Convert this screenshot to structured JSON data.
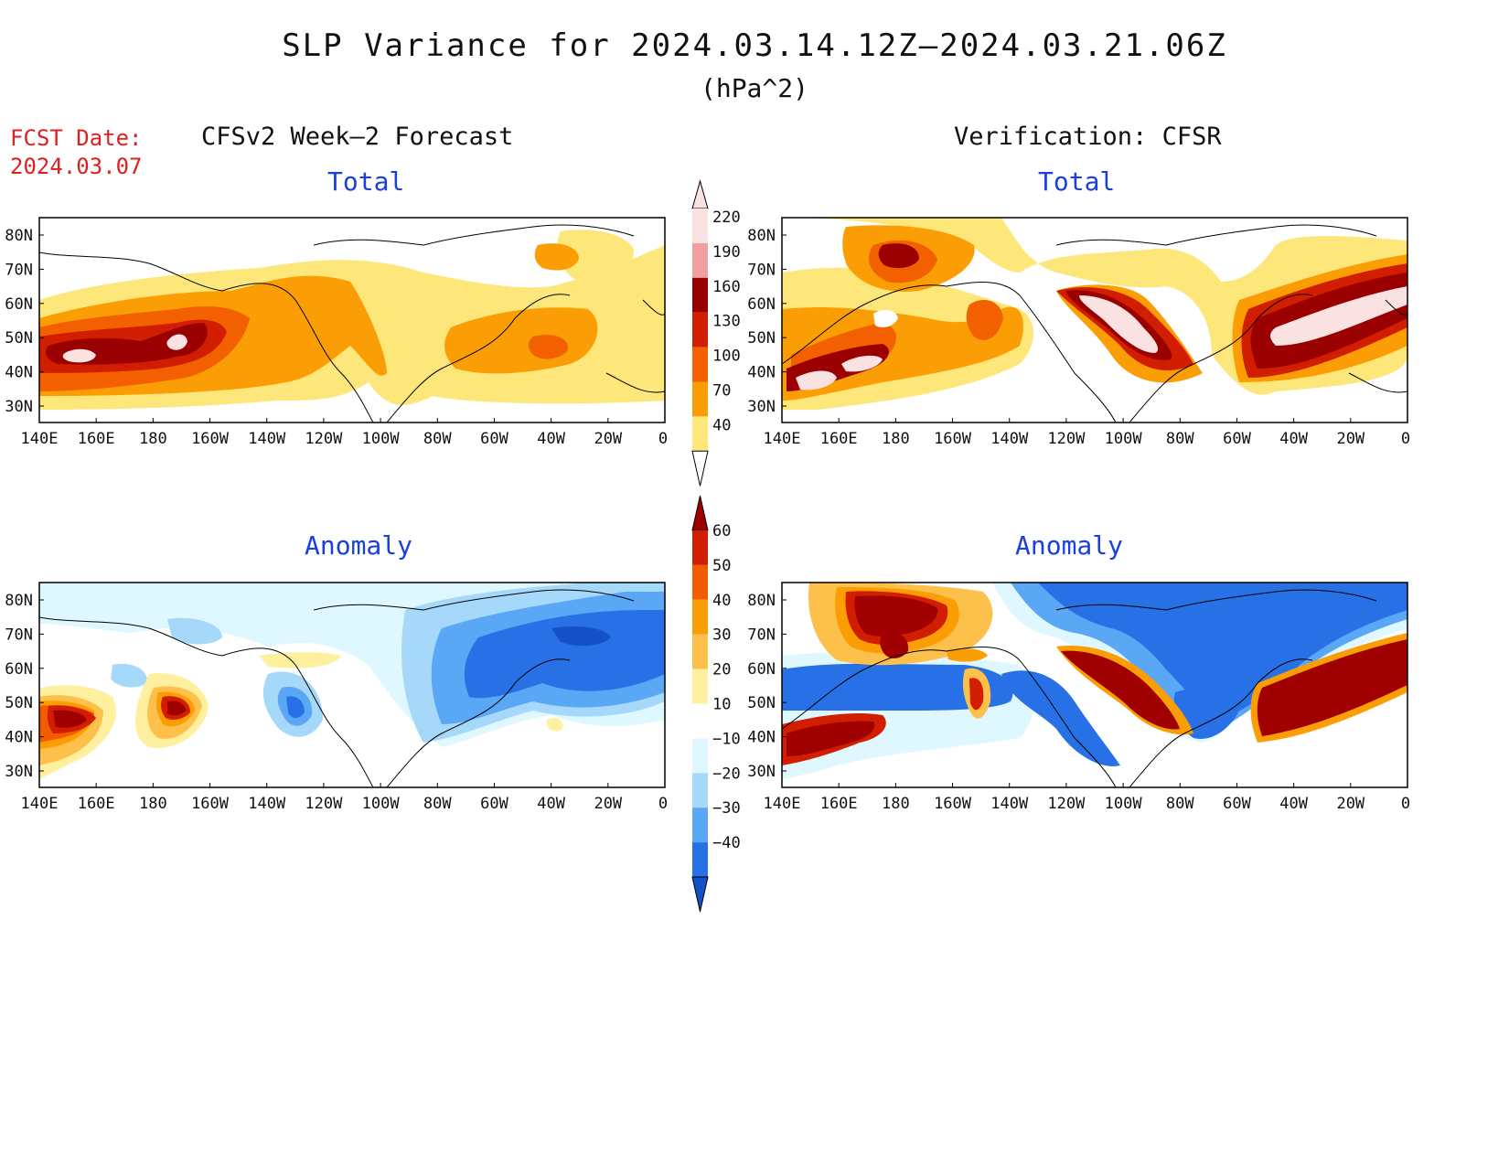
{
  "title": "SLP Variance for 2024.03.14.12Z–2024.03.21.06Z",
  "units": "(hPa^2)",
  "fcst_date_label": "FCST Date:",
  "fcst_date": "2024.03.07",
  "columns": {
    "left": "CFSv2 Week–2 Forecast",
    "right": "Verification: CFSR"
  },
  "panels": {
    "forecast_total": {
      "title": "Total"
    },
    "forecast_anomaly": {
      "title": "Anomaly"
    },
    "verification_total": {
      "title": "Total"
    },
    "verification_anomaly": {
      "title": "Anomaly"
    }
  },
  "axes": {
    "x_ticks": [
      "140E",
      "160E",
      "180",
      "160W",
      "140W",
      "120W",
      "100W",
      "80W",
      "60W",
      "40W",
      "20W",
      "0"
    ],
    "y_ticks": [
      "80N",
      "70N",
      "60N",
      "50N",
      "40N",
      "30N"
    ]
  },
  "colorbars": {
    "total": {
      "levels": [
        "220",
        "190",
        "160",
        "130",
        "100",
        "70",
        "40"
      ],
      "colors": [
        "#fbe2e2",
        "#f0a0a0",
        "#9b0000",
        "#d21e00",
        "#f26000",
        "#fb9e06",
        "#fde67a"
      ]
    },
    "anomaly": {
      "levels": [
        "60",
        "50",
        "40",
        "30",
        "20",
        "10",
        "−10",
        "−20",
        "−30",
        "−40"
      ],
      "colors": [
        "#a00000",
        "#d21e00",
        "#f25c00",
        "#fb9e06",
        "#fdc04a",
        "#fff0a0",
        "#ffffff",
        "#dff8ff",
        "#a6d8fa",
        "#5aa8f5",
        "#2870e6",
        "#1450c8"
      ]
    }
  }
}
